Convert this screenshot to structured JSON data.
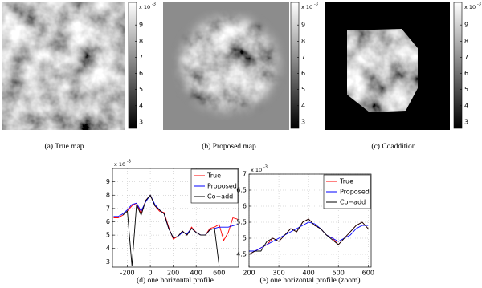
{
  "chart_data": [
    {
      "type": "image",
      "caption": "(a) True map",
      "colorbar": {
        "lim": [
          2.6,
          10.4
        ],
        "ticks": [
          3,
          4,
          5,
          6,
          7,
          8,
          9
        ],
        "label": "x 10",
        "exponent": "-3"
      }
    },
    {
      "type": "image",
      "caption": "(b) Proposed map",
      "colorbar": {
        "lim": [
          2.6,
          10.4
        ],
        "ticks": [
          3,
          4,
          5,
          6,
          7,
          8,
          9
        ],
        "label": "x 10",
        "exponent": "-3"
      }
    },
    {
      "type": "image",
      "caption": "(c) Coaddition",
      "colorbar": {
        "lim": [
          2.6,
          10.4
        ],
        "ticks": [
          3,
          4,
          5,
          6,
          7,
          8,
          9
        ],
        "label": "x 10",
        "exponent": "-3"
      }
    },
    {
      "type": "line",
      "caption": "(d) one horizontal profile",
      "ylabel": "x 10",
      "yexponent": "-3",
      "grid": true,
      "legend": "upper-right",
      "x": [
        -320,
        -280,
        -240,
        -200,
        -160,
        -120,
        -80,
        -40,
        0,
        40,
        80,
        120,
        160,
        200,
        240,
        280,
        320,
        360,
        400,
        440,
        480,
        520,
        560,
        600,
        640,
        680,
        720,
        760
      ],
      "xlim": [
        -330,
        770
      ],
      "xticks": [
        -200,
        0,
        200,
        400,
        600
      ],
      "ylim": [
        2.6,
        10
      ],
      "yticks": [
        3,
        4,
        5,
        6,
        7,
        8,
        9
      ],
      "series": [
        {
          "name": "True",
          "color": "#ff0000",
          "values": [
            6.3,
            6.3,
            6.5,
            6.8,
            7.2,
            7.4,
            6.6,
            7.6,
            8.0,
            7.2,
            6.8,
            6.7,
            5.6,
            4.7,
            4.9,
            5.3,
            5.0,
            5.6,
            5.2,
            5.0,
            5.0,
            5.5,
            5.6,
            5.8,
            4.6,
            5.2,
            6.3,
            6.2
          ]
        },
        {
          "name": "Proposed",
          "color": "#0000ff",
          "values": [
            6.4,
            6.4,
            6.6,
            6.9,
            7.3,
            7.4,
            6.8,
            7.5,
            8.0,
            7.3,
            6.9,
            6.6,
            5.5,
            4.8,
            4.9,
            5.2,
            5.1,
            5.5,
            5.2,
            5.0,
            5.0,
            5.4,
            5.5,
            5.6,
            5.6,
            5.6,
            5.7,
            5.8
          ]
        },
        {
          "name": "Co−add",
          "color": "#000000",
          "values": [
            null,
            null,
            6.5,
            6.8,
            2.7,
            7.3,
            6.5,
            7.6,
            8.0,
            7.2,
            6.9,
            6.6,
            5.5,
            4.8,
            4.9,
            5.3,
            5.0,
            5.5,
            5.2,
            5.0,
            5.0,
            5.4,
            5.5,
            2.7,
            null,
            null,
            null,
            null
          ]
        }
      ]
    },
    {
      "type": "line",
      "caption": "(e) one horizontal profile (zoom)",
      "ylabel": "x 10",
      "yexponent": "-3",
      "grid": true,
      "legend": "upper-right",
      "x": [
        200,
        220,
        240,
        260,
        280,
        300,
        320,
        340,
        360,
        380,
        400,
        420,
        440,
        460,
        480,
        500,
        520,
        540,
        560,
        580,
        600
      ],
      "xlim": [
        200,
        610
      ],
      "xticks": [
        200,
        300,
        400,
        500,
        600
      ],
      "ylim": [
        4.1,
        7.0
      ],
      "yticks": [
        4.5,
        5,
        5.5,
        6,
        6.5,
        7
      ],
      "series": [
        {
          "name": "True",
          "color": "#ff0000",
          "values": [
            4.5,
            4.6,
            4.7,
            4.8,
            5.0,
            4.9,
            5.1,
            5.3,
            5.2,
            5.5,
            5.6,
            5.4,
            5.3,
            5.1,
            5.0,
            4.8,
            5.0,
            5.2,
            5.4,
            5.5,
            5.3
          ]
        },
        {
          "name": "Proposed",
          "color": "#0000ff",
          "values": [
            4.6,
            4.6,
            4.7,
            4.8,
            4.9,
            5.0,
            5.1,
            5.2,
            5.3,
            5.4,
            5.5,
            5.45,
            5.3,
            5.1,
            5.0,
            4.9,
            5.0,
            5.1,
            5.3,
            5.4,
            5.4
          ]
        },
        {
          "name": "Co−add",
          "color": "#000000",
          "values": [
            4.5,
            4.6,
            4.6,
            4.9,
            5.0,
            4.9,
            5.1,
            5.3,
            5.2,
            5.5,
            5.6,
            5.4,
            5.3,
            5.1,
            4.95,
            4.8,
            5.0,
            5.2,
            5.4,
            5.5,
            5.3
          ]
        }
      ]
    }
  ]
}
